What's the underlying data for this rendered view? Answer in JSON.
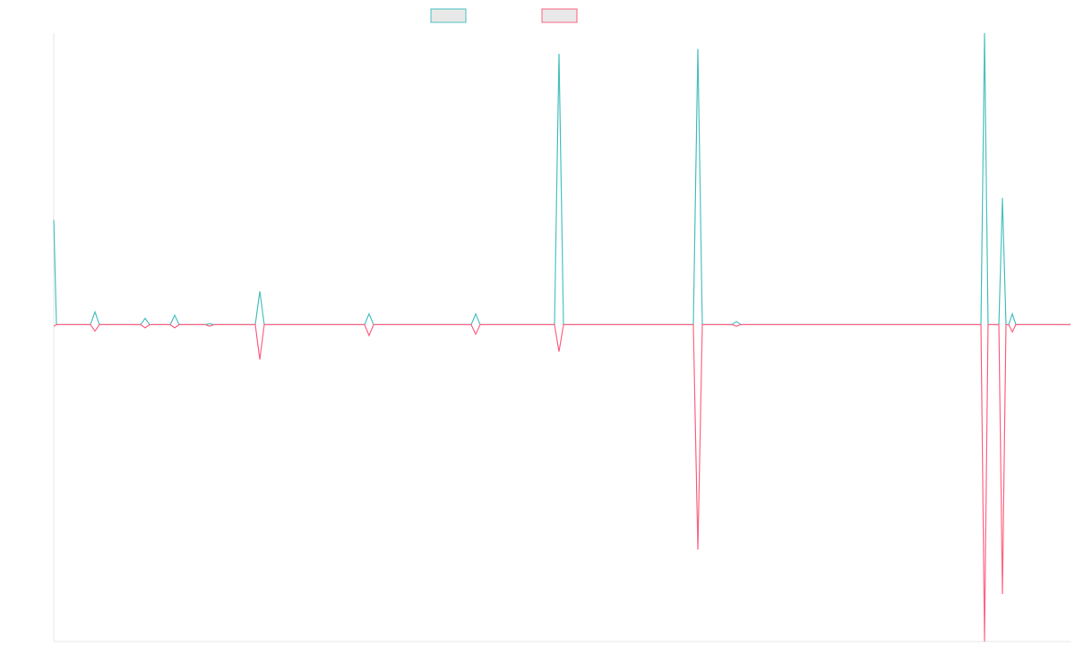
{
  "chart_data": {
    "type": "line",
    "x": [
      0,
      3,
      41,
      46,
      51,
      97,
      102,
      107,
      130,
      135,
      140,
      169,
      174,
      179,
      225,
      230,
      235,
      347,
      352,
      357,
      466,
      471,
      476,
      559,
      564,
      569,
      714,
      719,
      724,
      757,
      762,
      767,
      1035,
      1039,
      1043,
      1055,
      1059,
      1063,
      1066,
      1070,
      1074,
      1135
    ],
    "xlim": [
      0,
      1135
    ],
    "ylim": [
      -100,
      92
    ],
    "series": [
      {
        "color": "#4bc0c0",
        "values": [
          33,
          0,
          0,
          4,
          0,
          0,
          2,
          0,
          0,
          3,
          0,
          0,
          0.3,
          0,
          0,
          10.5,
          0,
          0,
          3.4,
          0,
          0,
          3.4,
          0,
          0,
          85.5,
          0,
          0,
          87,
          0,
          0,
          1,
          0,
          0,
          92,
          0,
          0,
          40,
          0,
          0,
          3.4,
          0,
          0
        ]
      },
      {
        "color": "#ff6384",
        "values": [
          -0.5,
          0,
          0,
          -2,
          0,
          0,
          -1,
          0,
          0,
          -1,
          0,
          0,
          -0.5,
          0,
          0,
          -11,
          0,
          0,
          -3.4,
          0,
          0,
          -3,
          0,
          0,
          -8.5,
          0,
          0,
          -71,
          0,
          0,
          -0.5,
          0,
          0,
          -100,
          0,
          0,
          -85,
          0,
          0,
          -2.3,
          0,
          0
        ]
      }
    ]
  }
}
